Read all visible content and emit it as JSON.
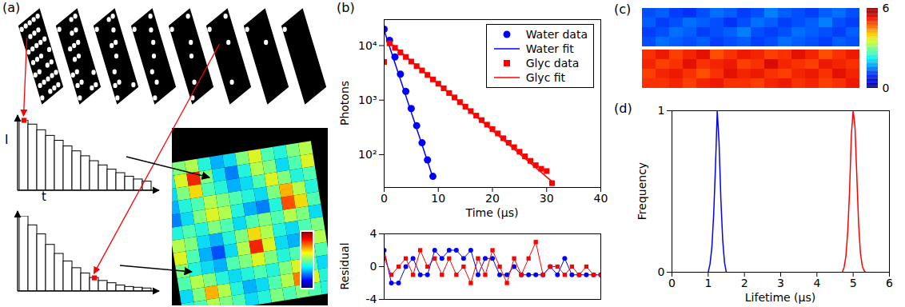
{
  "chart_data": [
    {
      "type": "diagram",
      "title": "(a)",
      "tick_labels": false,
      "histograms": [
        {
          "ylabel": "I",
          "xlabel": "t",
          "ylim": [
            0,
            1
          ],
          "values": [
            1,
            0.94,
            0.86,
            0.78,
            0.71,
            0.63,
            0.56,
            0.49,
            0.42,
            0.36,
            0.3,
            0.25,
            0.2,
            0.16,
            0.13
          ],
          "marked_bin": 0
        },
        {
          "ylim": [
            0,
            1
          ],
          "values": [
            1,
            0.88,
            0.76,
            0.62,
            0.5,
            0.4,
            0.31,
            0.24,
            0.18,
            0.14,
            0.11,
            0.08,
            0.06,
            0.05,
            0.04
          ],
          "marked_bin": 8
        }
      ],
      "image": {
        "zlim": [
          0,
          1
        ],
        "cells": [
          [
            0.45,
            0.5,
            0.55,
            0.4,
            0.3,
            0.35,
            0.5,
            0.6,
            0.45,
            0.4,
            0.5,
            0.55
          ],
          [
            0.4,
            0.6,
            0.85,
            0.5,
            0.35,
            0.25,
            0.4,
            0.55,
            0.5,
            0.35,
            0.45,
            0.6
          ],
          [
            0.35,
            0.5,
            0.65,
            0.45,
            0.4,
            0.3,
            0.35,
            0.45,
            0.6,
            0.5,
            0.4,
            0.45
          ],
          [
            0.3,
            0.4,
            0.45,
            0.55,
            0.5,
            0.45,
            0.4,
            0.35,
            0.5,
            0.7,
            0.55,
            0.4
          ],
          [
            0.25,
            0.35,
            0.5,
            0.6,
            0.55,
            0.4,
            0.3,
            0.25,
            0.4,
            0.8,
            0.65,
            0.45
          ],
          [
            0.4,
            0.45,
            0.4,
            0.5,
            0.45,
            0.35,
            0.45,
            0.5,
            0.45,
            0.55,
            0.5,
            0.35
          ],
          [
            0.55,
            0.5,
            0.35,
            0.3,
            0.4,
            0.5,
            0.65,
            0.55,
            0.4,
            0.35,
            0.45,
            0.5
          ],
          [
            0.6,
            0.45,
            0.3,
            0.2,
            0.35,
            0.55,
            0.85,
            0.6,
            0.35,
            0.3,
            0.4,
            0.55
          ],
          [
            0.5,
            0.4,
            0.35,
            0.3,
            0.45,
            0.5,
            0.6,
            0.5,
            0.4,
            0.45,
            0.5,
            0.45
          ],
          [
            0.45,
            0.55,
            0.5,
            0.4,
            0.35,
            0.4,
            0.45,
            0.4,
            0.5,
            0.6,
            0.45,
            0.35
          ],
          [
            0.35,
            0.5,
            0.7,
            0.55,
            0.4,
            0.3,
            0.35,
            0.45,
            0.55,
            0.75,
            0.6,
            0.4
          ],
          [
            0.4,
            0.45,
            0.55,
            0.5,
            0.45,
            0.35,
            0.4,
            0.5,
            0.45,
            0.5,
            0.45,
            0.4
          ]
        ]
      }
    },
    {
      "type": "line",
      "title": "(b)",
      "xlabel": "Time (µs)",
      "ylabel": "Photons",
      "log": "y",
      "legend": "top-right",
      "xlim": [
        0,
        40
      ],
      "xticks": [
        0,
        10,
        20,
        30,
        40
      ],
      "ylim": [
        25,
        30000
      ],
      "yticks": [
        {
          "value": 100,
          "label": "10²"
        },
        {
          "value": 1000,
          "label": "10³"
        },
        {
          "value": 10000,
          "label": "10⁴"
        }
      ],
      "series": [
        {
          "name": "Water data",
          "type": "scatter",
          "marker": "circle",
          "color": "#0000ff",
          "x": [
            0,
            1,
            2,
            3,
            4,
            5,
            6,
            7,
            8,
            9
          ],
          "values": [
            20000,
            12500,
            6200,
            3000,
            1450,
            700,
            340,
            165,
            80,
            40
          ]
        },
        {
          "name": "Water fit",
          "type": "line",
          "line_style": "solid",
          "color": "#0000ff",
          "x": [
            0,
            9
          ],
          "values": [
            19000,
            38
          ]
        },
        {
          "name": "Glyc data",
          "type": "scatter",
          "marker": "square",
          "color": "#ff0000",
          "x": [
            0,
            1,
            2,
            3,
            4,
            5,
            6,
            7,
            8,
            9,
            10,
            11,
            12,
            13,
            14,
            15,
            16,
            17,
            18,
            19,
            20,
            21,
            22,
            23,
            24,
            25,
            26,
            27,
            28,
            29,
            30,
            31
          ],
          "values": [
            5000,
            11000,
            9100,
            7500,
            6200,
            5100,
            4200,
            3500,
            2900,
            2400,
            2000,
            1650,
            1350,
            1120,
            920,
            760,
            630,
            520,
            430,
            355,
            295,
            245,
            200,
            165,
            137,
            113,
            93,
            77,
            64,
            55,
            50,
            30
          ]
        },
        {
          "name": "Glyc fit",
          "type": "line",
          "line_style": "solid",
          "color": "#ff0000",
          "x": [
            1,
            31
          ],
          "values": [
            11500,
            32
          ]
        }
      ]
    },
    {
      "type": "line",
      "ylabel": "Residual",
      "tick_labels": "y",
      "xlim": [
        0,
        30
      ],
      "ylim": [
        -4,
        4
      ],
      "yticks": [
        -4,
        0,
        4
      ],
      "series": [
        {
          "color": "#0000ff",
          "marker": "circle",
          "x": [
            0,
            1,
            2,
            3,
            4,
            5,
            6,
            7,
            8,
            9,
            10,
            11,
            12,
            13,
            14,
            15,
            16,
            17,
            18,
            19,
            20,
            21,
            22,
            23,
            24,
            25,
            26,
            27,
            28,
            29,
            30
          ],
          "values": [
            2,
            -2,
            -2,
            0,
            1,
            -1,
            -1,
            2,
            1,
            2,
            2,
            1,
            2,
            -1,
            1,
            1,
            -1,
            -1,
            0,
            -1,
            -1,
            -1,
            -1,
            0,
            -1,
            1,
            -1,
            -1,
            -1,
            -1,
            -1
          ]
        },
        {
          "color": "#ff0000",
          "marker": "square",
          "x": [
            0,
            1,
            2,
            3,
            4,
            5,
            6,
            7,
            8,
            9,
            10,
            11,
            12,
            13,
            14,
            15,
            16,
            17,
            18,
            19,
            20,
            21,
            22,
            23,
            24,
            25,
            26,
            27,
            28,
            29,
            30
          ],
          "values": [
            1,
            -1,
            0,
            1,
            -1,
            2,
            0,
            1,
            -1,
            1,
            -1,
            0,
            -2,
            1,
            -1,
            2,
            0,
            -2,
            1,
            -1,
            1,
            3,
            -1,
            0,
            0,
            -1,
            0,
            -1,
            0,
            -1,
            -1
          ]
        }
      ]
    },
    {
      "type": "heatmap",
      "title": "(c)",
      "zlim": [
        0,
        6
      ],
      "zticks": [
        0,
        6
      ],
      "panels": [
        {
          "cells": [
            [
              1.2,
              1.3,
              1.1,
              1.0,
              1.2,
              1.4,
              1.3,
              1.1,
              1.2,
              1.5,
              1.3,
              1.2,
              1.1,
              1.3,
              1.4,
              1.2
            ],
            [
              1.3,
              1.1,
              1.2,
              1.4,
              1.3,
              1.2,
              1.0,
              1.2,
              1.4,
              1.3,
              1.1,
              1.2,
              1.3,
              1.5,
              1.2,
              1.1
            ],
            [
              1.1,
              1.2,
              1.4,
              1.3,
              1.1,
              1.2,
              1.3,
              1.5,
              1.2,
              1.1,
              1.2,
              1.4,
              1.3,
              1.2,
              1.1,
              1.3
            ],
            [
              1.2,
              1.4,
              1.3,
              1.2,
              1.3,
              1.1,
              1.2,
              1.3,
              1.1,
              1.2,
              1.4,
              1.3,
              1.2,
              1.1,
              1.3,
              1.2
            ]
          ]
        },
        {
          "cells": [
            [
              5.0,
              5.2,
              4.9,
              5.1,
              5.3,
              4.8,
              5.0,
              5.2,
              5.1,
              4.9,
              5.0,
              5.3,
              5.1,
              4.8,
              5.0,
              5.2
            ],
            [
              5.1,
              4.9,
              5.0,
              5.3,
              5.0,
              5.1,
              5.2,
              4.9,
              5.0,
              5.4,
              5.1,
              5.0,
              4.9,
              5.2,
              5.1,
              5.0
            ],
            [
              4.9,
              5.1,
              5.2,
              5.0,
              4.8,
              5.0,
              5.3,
              5.1,
              5.2,
              5.0,
              4.9,
              5.1,
              5.2,
              5.0,
              5.3,
              5.1
            ],
            [
              5.0,
              5.0,
              5.1,
              4.9,
              5.1,
              5.2,
              5.0,
              5.0,
              4.9,
              5.1,
              5.2,
              5.0,
              5.1,
              4.9,
              5.0,
              5.2
            ]
          ]
        }
      ]
    },
    {
      "type": "line",
      "title": "(d)",
      "xlabel": "Lifetime (µs)",
      "ylabel": "Frequency",
      "xlim": [
        0,
        6
      ],
      "xticks": [
        0,
        1,
        2,
        3,
        4,
        5,
        6
      ],
      "ylim": [
        0,
        1
      ],
      "yticks": [
        0,
        1
      ],
      "series": [
        {
          "color": "#0000ff",
          "x": [
            1.0,
            1.05,
            1.1,
            1.15,
            1.2,
            1.25,
            1.3,
            1.35,
            1.4,
            1.45,
            1.5
          ],
          "values": [
            0,
            0.05,
            0.15,
            0.35,
            0.65,
            1.0,
            0.8,
            0.45,
            0.2,
            0.06,
            0
          ]
        },
        {
          "color": "#ff0000",
          "x": [
            4.7,
            4.75,
            4.8,
            4.85,
            4.9,
            4.95,
            5.0,
            5.05,
            5.1,
            5.15,
            5.2,
            5.25,
            5.3,
            5.35
          ],
          "values": [
            0,
            0.03,
            0.1,
            0.25,
            0.5,
            0.85,
            1.0,
            0.9,
            0.6,
            0.3,
            0.12,
            0.04,
            0.01,
            0
          ]
        }
      ]
    }
  ]
}
